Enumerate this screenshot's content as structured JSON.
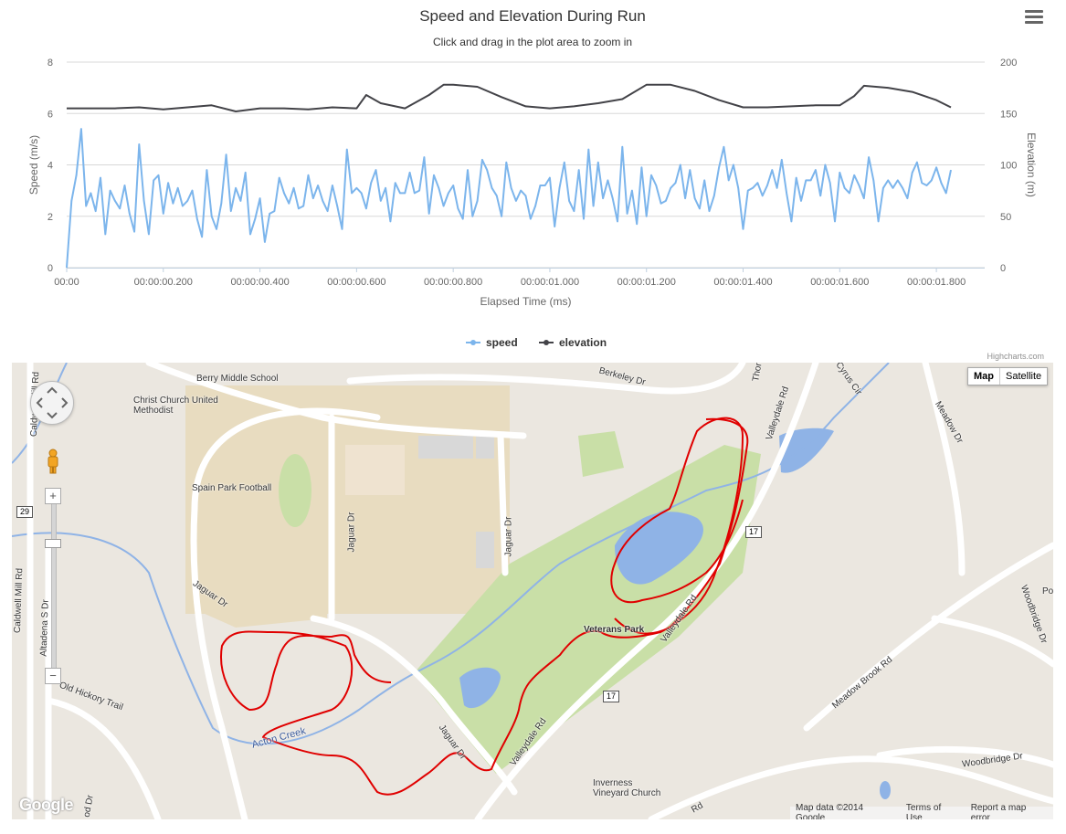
{
  "chart": {
    "title": "Speed and Elevation During Run",
    "subtitle": "Click and drag in the plot area to zoom in",
    "credits": "Highcharts.com"
  },
  "chart_data": {
    "type": "line",
    "title": "Speed and Elevation During Run",
    "subtitle": "Click and drag in the plot area to zoom in",
    "xlabel": "Elapsed Time (ms)",
    "x_tick_labels": [
      "00:00",
      "00:00:00.200",
      "00:00:00.400",
      "00:00:00.600",
      "00:00:00.800",
      "00:00:01.000",
      "00:00:01.200",
      "00:00:01.400",
      "00:00:01.600",
      "00:00:01.800"
    ],
    "xlim": [
      0,
      1.9
    ],
    "y_axes": [
      {
        "label": "Speed (m/s)",
        "side": "left",
        "ylim": [
          0,
          8
        ],
        "ticks": [
          "0",
          "2",
          "4",
          "6",
          "8"
        ]
      },
      {
        "label": "Elevation (m)",
        "side": "right",
        "ylim": [
          0,
          200
        ],
        "ticks": [
          "0",
          "50",
          "100",
          "150",
          "200"
        ]
      }
    ],
    "legend_position": "bottom-center",
    "grid": true,
    "series": [
      {
        "name": "speed",
        "axis": 0,
        "color": "#7cb5ec",
        "x": [
          0,
          0.01,
          0.02,
          0.03,
          0.04,
          0.05,
          0.06,
          0.07,
          0.08,
          0.09,
          0.1,
          0.11,
          0.12,
          0.13,
          0.14,
          0.15,
          0.16,
          0.17,
          0.18,
          0.19,
          0.2,
          0.21,
          0.22,
          0.23,
          0.24,
          0.25,
          0.26,
          0.27,
          0.28,
          0.29,
          0.3,
          0.31,
          0.32,
          0.33,
          0.34,
          0.35,
          0.36,
          0.37,
          0.38,
          0.39,
          0.4,
          0.41,
          0.42,
          0.43,
          0.44,
          0.45,
          0.46,
          0.47,
          0.48,
          0.49,
          0.5,
          0.51,
          0.52,
          0.53,
          0.54,
          0.55,
          0.56,
          0.57,
          0.58,
          0.59,
          0.6,
          0.61,
          0.62,
          0.63,
          0.64,
          0.65,
          0.66,
          0.67,
          0.68,
          0.69,
          0.7,
          0.71,
          0.72,
          0.73,
          0.74,
          0.75,
          0.76,
          0.77,
          0.78,
          0.79,
          0.8,
          0.81,
          0.82,
          0.83,
          0.84,
          0.85,
          0.86,
          0.87,
          0.88,
          0.89,
          0.9,
          0.91,
          0.92,
          0.93,
          0.94,
          0.95,
          0.96,
          0.97,
          0.98,
          0.99,
          1.0,
          1.01,
          1.02,
          1.03,
          1.04,
          1.05,
          1.06,
          1.07,
          1.08,
          1.09,
          1.1,
          1.11,
          1.12,
          1.13,
          1.14,
          1.15,
          1.16,
          1.17,
          1.18,
          1.19,
          1.2,
          1.21,
          1.22,
          1.23,
          1.24,
          1.25,
          1.26,
          1.27,
          1.28,
          1.29,
          1.3,
          1.31,
          1.32,
          1.33,
          1.34,
          1.35,
          1.36,
          1.37,
          1.38,
          1.39,
          1.4,
          1.41,
          1.42,
          1.43,
          1.44,
          1.45,
          1.46,
          1.47,
          1.48,
          1.49,
          1.5,
          1.51,
          1.52,
          1.53,
          1.54,
          1.55,
          1.56,
          1.57,
          1.58,
          1.59,
          1.6,
          1.61,
          1.62,
          1.63,
          1.64,
          1.65,
          1.66,
          1.67,
          1.68,
          1.69,
          1.7,
          1.71,
          1.72,
          1.73,
          1.74,
          1.75,
          1.76,
          1.77,
          1.78,
          1.79,
          1.8,
          1.81,
          1.82,
          1.83
        ],
        "values": [
          0.0,
          2.6,
          3.6,
          5.4,
          2.4,
          2.9,
          2.2,
          3.5,
          1.3,
          3.0,
          2.6,
          2.3,
          3.2,
          2.1,
          1.4,
          4.8,
          2.6,
          1.3,
          3.4,
          3.6,
          2.1,
          3.3,
          2.5,
          3.1,
          2.4,
          2.6,
          3.0,
          1.9,
          1.2,
          3.8,
          2.0,
          1.5,
          2.5,
          4.4,
          2.2,
          3.1,
          2.6,
          3.7,
          1.3,
          1.9,
          2.7,
          1.0,
          2.1,
          2.2,
          3.5,
          2.9,
          2.5,
          3.1,
          2.3,
          2.4,
          3.6,
          2.7,
          3.2,
          2.6,
          2.2,
          3.2,
          2.4,
          1.5,
          4.6,
          2.9,
          3.1,
          2.9,
          2.3,
          3.3,
          3.8,
          2.6,
          3.1,
          1.8,
          3.3,
          2.9,
          2.9,
          3.7,
          2.9,
          3.0,
          4.3,
          2.1,
          3.6,
          3.1,
          2.4,
          2.9,
          3.2,
          2.3,
          1.9,
          3.8,
          2.0,
          2.6,
          4.2,
          3.8,
          3.1,
          2.8,
          2.0,
          4.1,
          3.1,
          2.6,
          3.0,
          2.8,
          1.9,
          2.4,
          3.2,
          3.2,
          3.5,
          1.6,
          3.1,
          4.1,
          2.6,
          2.2,
          3.8,
          1.9,
          4.6,
          2.4,
          4.1,
          2.7,
          3.4,
          2.7,
          1.8,
          4.7,
          2.1,
          3.0,
          1.7,
          3.9,
          2.0,
          3.6,
          3.2,
          2.5,
          2.6,
          3.1,
          3.3,
          4.0,
          2.7,
          3.8,
          2.7,
          2.3,
          3.4,
          2.2,
          2.8,
          3.9,
          4.7,
          3.4,
          4.0,
          3.1,
          1.5,
          3.0,
          3.1,
          3.3,
          2.8,
          3.2,
          3.8,
          3.1,
          4.2,
          2.9,
          1.8,
          3.5,
          2.6,
          3.4,
          3.4,
          3.8,
          2.8,
          4.0,
          3.3,
          1.8,
          3.7,
          3.1,
          2.9,
          3.6,
          3.2,
          2.7,
          4.3,
          3.4,
          1.8,
          3.1,
          3.4,
          3.1,
          3.4,
          3.1,
          2.7,
          3.7,
          4.1,
          3.3,
          3.2,
          3.4,
          3.9,
          3.3,
          2.9,
          3.8
        ]
      },
      {
        "name": "elevation",
        "axis": 1,
        "color": "#434348",
        "x": [
          0,
          0.05,
          0.1,
          0.15,
          0.2,
          0.25,
          0.3,
          0.35,
          0.4,
          0.45,
          0.5,
          0.55,
          0.6,
          0.62,
          0.65,
          0.7,
          0.75,
          0.78,
          0.8,
          0.85,
          0.9,
          0.95,
          1.0,
          1.05,
          1.1,
          1.15,
          1.2,
          1.25,
          1.3,
          1.35,
          1.4,
          1.45,
          1.5,
          1.55,
          1.6,
          1.63,
          1.65,
          1.7,
          1.75,
          1.8,
          1.83
        ],
        "values": [
          155,
          155,
          155,
          156,
          154,
          156,
          158,
          152,
          155,
          155,
          154,
          156,
          155,
          168,
          160,
          155,
          168,
          178,
          178,
          176,
          166,
          157,
          155,
          157,
          160,
          164,
          178,
          178,
          172,
          163,
          156,
          156,
          157,
          158,
          158,
          167,
          177,
          175,
          171,
          163,
          156
        ]
      }
    ]
  },
  "map": {
    "type_buttons": [
      "Map",
      "Satellite"
    ],
    "active_type": "Map",
    "zoom_in": "+",
    "zoom_out": "−",
    "logo": "Google",
    "footer": {
      "data": "Map data ©2014 Google",
      "terms": "Terms of Use",
      "report": "Report a map error"
    },
    "labels": [
      "Berry Middle School",
      "Christ Church United Methodist",
      "Spain Park Football",
      "Jaguar Dr",
      "Jaguar Dr",
      "Jaguar Dr",
      "Jaguar Dr",
      "Berkeley Dr",
      "Valleydale Rd",
      "Valleydale Rd",
      "Valleydale Rd",
      "Meadow Dr",
      "Meadow Brook Rd",
      "Woodbridge Dr",
      "Woodbridge Dr",
      "Caldwell Mill Rd",
      "Caldwell Mill Rd",
      "Altadena S Dr",
      "Old Hickory Trail",
      "Acton Creek",
      "Veterans Park",
      "Inverness Vineyard Church",
      "Cyrus Cir",
      "Thor",
      "Rd",
      "od Dr",
      "Po"
    ],
    "shields": [
      "29",
      "17",
      "17"
    ],
    "route_color": "#e00000",
    "water_color": "#8fb3e6",
    "park_color": "#c9dfa7"
  }
}
